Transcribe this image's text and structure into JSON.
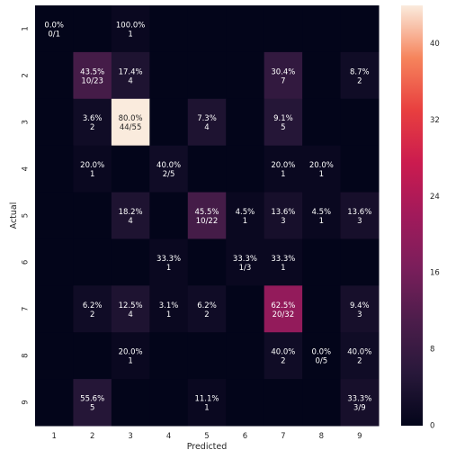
{
  "chart_data": {
    "type": "heatmap",
    "title": "",
    "xlabel": "Predicted",
    "ylabel": "Actual",
    "x_categories": [
      "1",
      "2",
      "3",
      "4",
      "5",
      "6",
      "7",
      "8",
      "9"
    ],
    "y_categories": [
      "1",
      "2",
      "3",
      "4",
      "5",
      "6",
      "7",
      "8",
      "9"
    ],
    "counts": [
      [
        0,
        0,
        1,
        0,
        0,
        0,
        0,
        0,
        0
      ],
      [
        0,
        10,
        4,
        0,
        0,
        0,
        7,
        0,
        2
      ],
      [
        0,
        2,
        44,
        0,
        4,
        0,
        5,
        0,
        0
      ],
      [
        0,
        1,
        0,
        2,
        0,
        0,
        1,
        1,
        0
      ],
      [
        0,
        0,
        4,
        0,
        10,
        1,
        3,
        1,
        3
      ],
      [
        0,
        0,
        0,
        1,
        0,
        1,
        1,
        0,
        0
      ],
      [
        0,
        2,
        4,
        1,
        2,
        0,
        20,
        0,
        3
      ],
      [
        0,
        0,
        1,
        0,
        0,
        0,
        2,
        0,
        2
      ],
      [
        0,
        5,
        0,
        0,
        1,
        0,
        0,
        0,
        3
      ]
    ],
    "annotations": [
      [
        [
          "0.0%",
          "0/1"
        ],
        null,
        [
          "100.0%",
          "1"
        ],
        null,
        null,
        null,
        null,
        null,
        null
      ],
      [
        null,
        [
          "43.5%",
          "10/23"
        ],
        [
          "17.4%",
          "4"
        ],
        null,
        null,
        null,
        [
          "30.4%",
          "7"
        ],
        null,
        [
          "8.7%",
          "2"
        ]
      ],
      [
        null,
        [
          "3.6%",
          "2"
        ],
        [
          "80.0%",
          "44/55"
        ],
        null,
        [
          "7.3%",
          "4"
        ],
        null,
        [
          "9.1%",
          "5"
        ],
        null,
        null
      ],
      [
        null,
        [
          "20.0%",
          "1"
        ],
        null,
        [
          "40.0%",
          "2/5"
        ],
        null,
        null,
        [
          "20.0%",
          "1"
        ],
        [
          "20.0%",
          "1"
        ],
        null
      ],
      [
        null,
        null,
        [
          "18.2%",
          "4"
        ],
        null,
        [
          "45.5%",
          "10/22"
        ],
        [
          "4.5%",
          "1"
        ],
        [
          "13.6%",
          "3"
        ],
        [
          "4.5%",
          "1"
        ],
        [
          "13.6%",
          "3"
        ]
      ],
      [
        null,
        null,
        null,
        [
          "33.3%",
          "1"
        ],
        null,
        [
          "33.3%",
          "1/3"
        ],
        [
          "33.3%",
          "1"
        ],
        null,
        null
      ],
      [
        null,
        [
          "6.2%",
          "2"
        ],
        [
          "12.5%",
          "4"
        ],
        [
          "3.1%",
          "1"
        ],
        [
          "6.2%",
          "2"
        ],
        null,
        [
          "62.5%",
          "20/32"
        ],
        null,
        [
          "9.4%",
          "3"
        ]
      ],
      [
        null,
        null,
        [
          "20.0%",
          "1"
        ],
        null,
        null,
        null,
        [
          "40.0%",
          "2"
        ],
        [
          "0.0%",
          "0/5"
        ],
        [
          "40.0%",
          "2"
        ]
      ],
      [
        null,
        [
          "55.6%",
          "5"
        ],
        null,
        null,
        [
          "11.1%",
          "1"
        ],
        null,
        null,
        null,
        [
          "33.3%",
          "3/9"
        ]
      ]
    ],
    "colorbar": {
      "min": 0,
      "max": 44,
      "ticks": [
        0,
        8,
        16,
        24,
        32,
        40
      ],
      "colormap": "rocket"
    },
    "grid": false
  }
}
